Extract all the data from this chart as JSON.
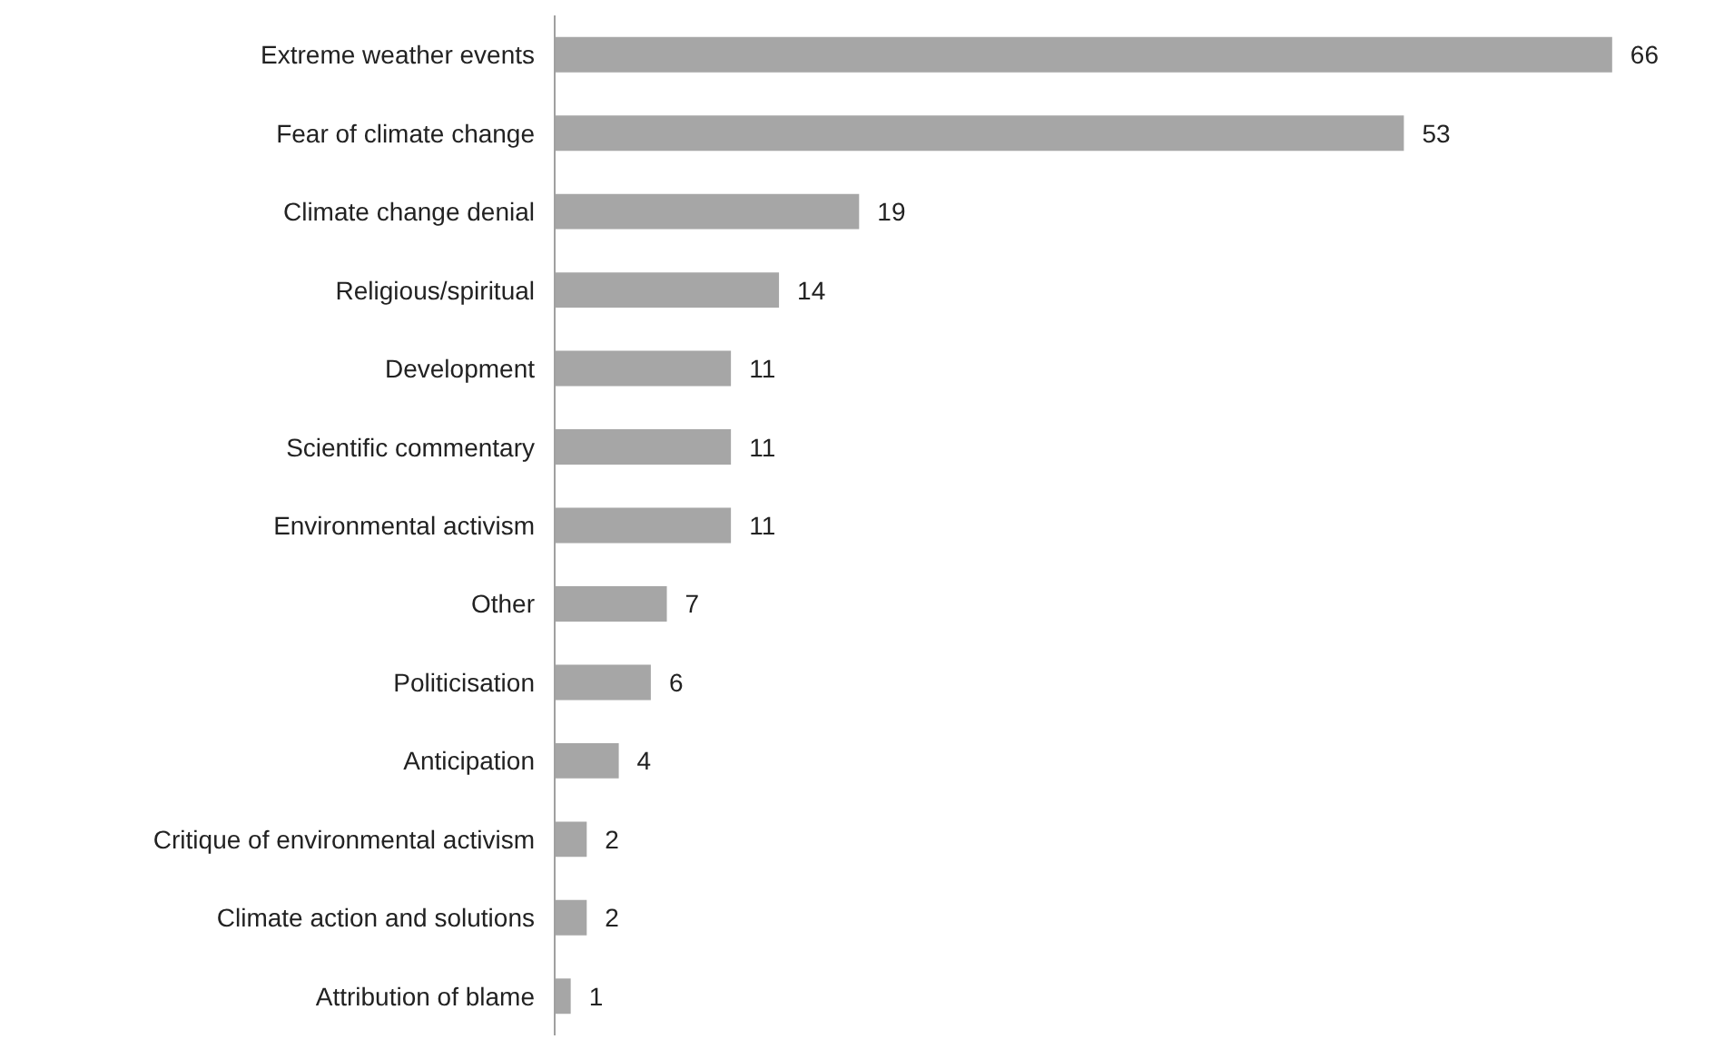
{
  "chart_data": {
    "type": "bar",
    "orientation": "horizontal",
    "categories": [
      "Extreme weather events",
      "Fear of climate change",
      "Climate change denial",
      "Religious/spiritual",
      "Development",
      "Scientific commentary",
      "Environmental activism",
      "Other",
      "Politicisation",
      "Anticipation",
      "Critique of environmental activism",
      "Climate action and solutions",
      "Attribution of blame"
    ],
    "values": [
      66,
      53,
      19,
      14,
      11,
      11,
      11,
      7,
      6,
      4,
      2,
      2,
      1
    ],
    "color": "#a6a6a6",
    "data_labels": true,
    "grid": false
  }
}
